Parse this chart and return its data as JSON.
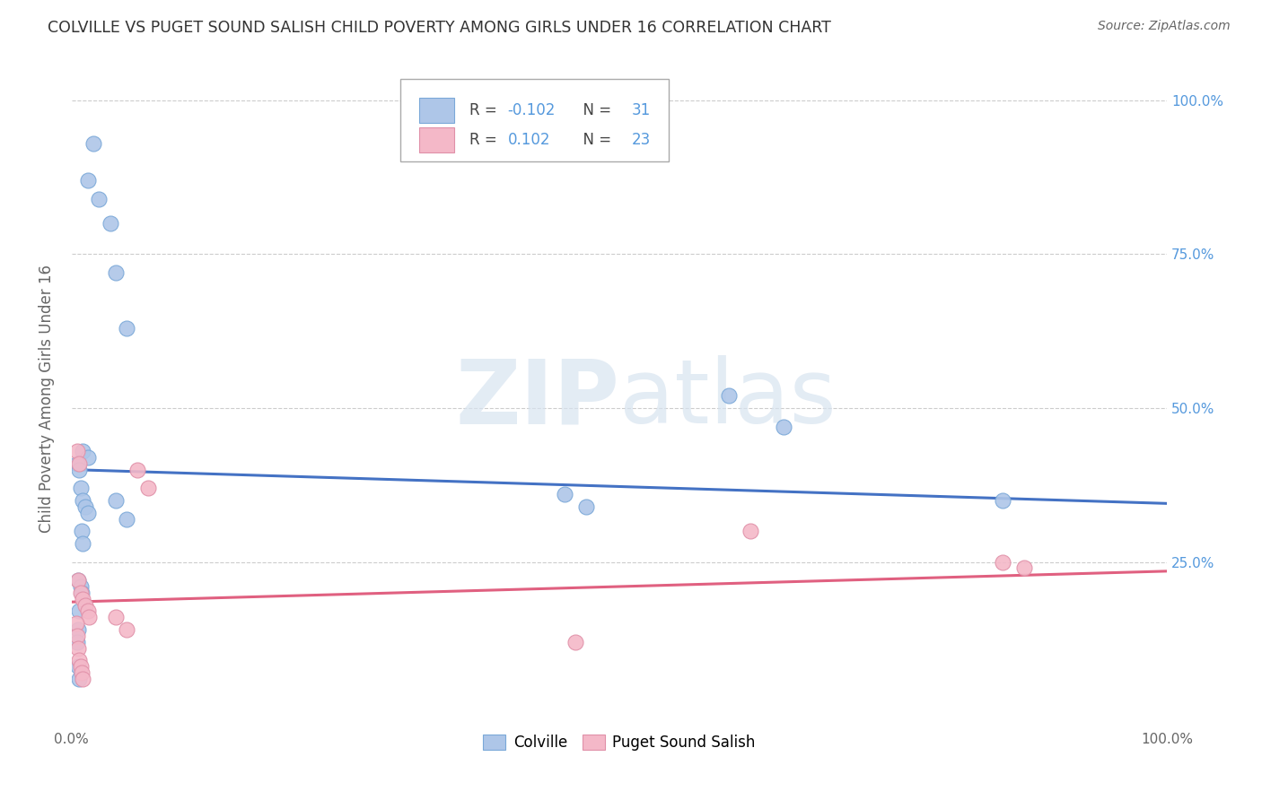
{
  "title": "COLVILLE VS PUGET SOUND SALISH CHILD POVERTY AMONG GIRLS UNDER 16 CORRELATION CHART",
  "source": "Source: ZipAtlas.com",
  "ylabel": "Child Poverty Among Girls Under 16",
  "watermark": "ZIPatlas",
  "legend_blue_R": "-0.102",
  "legend_blue_N": "31",
  "legend_pink_R": "0.102",
  "legend_pink_N": "23",
  "colville_color": "#aec6e8",
  "puget_color": "#f4b8c8",
  "blue_line_color": "#4472c4",
  "pink_line_color": "#e06080",
  "blue_scatter": [
    [
      0.02,
      0.93
    ],
    [
      0.015,
      0.87
    ],
    [
      0.025,
      0.84
    ],
    [
      0.035,
      0.8
    ],
    [
      0.04,
      0.72
    ],
    [
      0.05,
      0.63
    ],
    [
      0.01,
      0.43
    ],
    [
      0.015,
      0.42
    ],
    [
      0.005,
      0.41
    ],
    [
      0.007,
      0.4
    ],
    [
      0.008,
      0.37
    ],
    [
      0.01,
      0.35
    ],
    [
      0.012,
      0.34
    ],
    [
      0.015,
      0.33
    ],
    [
      0.04,
      0.35
    ],
    [
      0.05,
      0.32
    ],
    [
      0.009,
      0.3
    ],
    [
      0.01,
      0.28
    ],
    [
      0.45,
      0.36
    ],
    [
      0.47,
      0.34
    ],
    [
      0.006,
      0.22
    ],
    [
      0.008,
      0.21
    ],
    [
      0.009,
      0.2
    ],
    [
      0.007,
      0.17
    ],
    [
      0.006,
      0.14
    ],
    [
      0.005,
      0.12
    ],
    [
      0.006,
      0.08
    ],
    [
      0.007,
      0.06
    ],
    [
      0.6,
      0.52
    ],
    [
      0.65,
      0.47
    ],
    [
      0.85,
      0.35
    ]
  ],
  "puget_scatter": [
    [
      0.005,
      0.43
    ],
    [
      0.007,
      0.41
    ],
    [
      0.006,
      0.22
    ],
    [
      0.008,
      0.2
    ],
    [
      0.01,
      0.19
    ],
    [
      0.012,
      0.18
    ],
    [
      0.015,
      0.17
    ],
    [
      0.016,
      0.16
    ],
    [
      0.004,
      0.15
    ],
    [
      0.005,
      0.13
    ],
    [
      0.006,
      0.11
    ],
    [
      0.007,
      0.09
    ],
    [
      0.008,
      0.08
    ],
    [
      0.009,
      0.07
    ],
    [
      0.01,
      0.06
    ],
    [
      0.04,
      0.16
    ],
    [
      0.05,
      0.14
    ],
    [
      0.06,
      0.4
    ],
    [
      0.07,
      0.37
    ],
    [
      0.46,
      0.12
    ],
    [
      0.62,
      0.3
    ],
    [
      0.85,
      0.25
    ],
    [
      0.87,
      0.24
    ]
  ],
  "blue_line_x": [
    0.0,
    1.0
  ],
  "blue_line_y": [
    0.4,
    0.345
  ],
  "pink_line_x": [
    0.0,
    1.0
  ],
  "pink_line_y": [
    0.185,
    0.235
  ],
  "xlim": [
    0.0,
    1.0
  ],
  "ylim": [
    -0.02,
    1.05
  ],
  "grid_color": "#cccccc",
  "bg_color": "#ffffff",
  "title_color": "#333333",
  "axis_label_color": "#666666",
  "right_tick_color": "#5599dd"
}
